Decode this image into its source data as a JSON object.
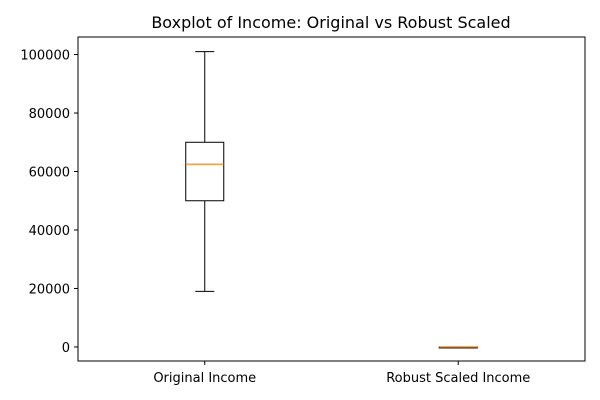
{
  "chart_data": {
    "type": "boxplot",
    "title": "Boxplot of Income: Original vs Robust Scaled",
    "xlabel": "",
    "ylabel": "",
    "categories": [
      "Original Income",
      "Robust Scaled Income"
    ],
    "boxes": [
      {
        "whisker_low": 19000,
        "q1": 50000,
        "median": 62500,
        "q3": 70000,
        "whisker_high": 101000
      },
      {
        "whisker_low": -0.8,
        "q1": -0.6,
        "median": 0,
        "q3": 0.4,
        "whisker_high": 1.0
      }
    ],
    "ylim": [
      -4800,
      106000
    ],
    "yticks": [
      0,
      20000,
      40000,
      60000,
      80000,
      100000
    ],
    "ytick_labels": [
      "0",
      "20000",
      "40000",
      "60000",
      "80000",
      "100000"
    ],
    "grid": false,
    "colors": {
      "box": "#000000",
      "median": "#ff7f0e",
      "axis": "#000000",
      "background": "#ffffff"
    }
  }
}
